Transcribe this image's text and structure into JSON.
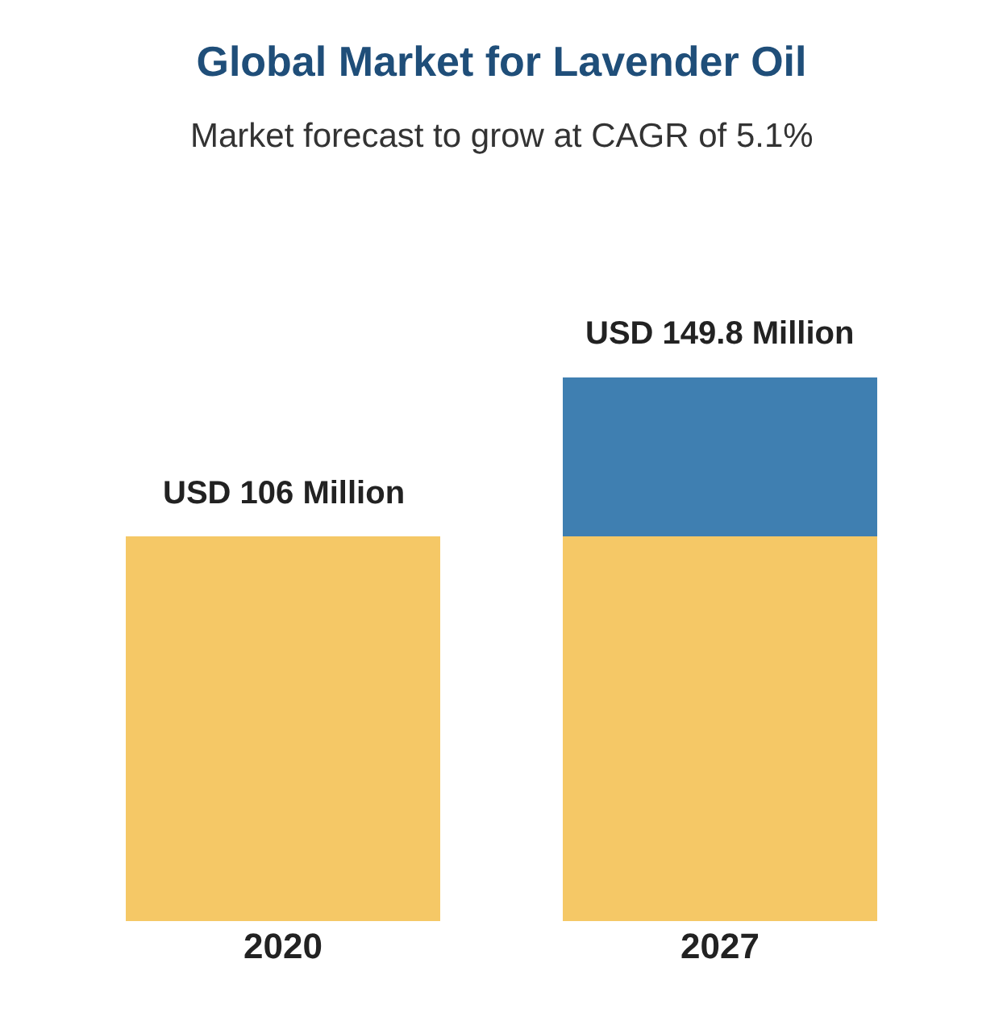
{
  "chart_data": {
    "type": "bar",
    "title": "Global Market for Lavender Oil",
    "subtitle": "Market forecast to grow at CAGR of 5.1%",
    "categories": [
      "2020",
      "2027"
    ],
    "stacked": true,
    "series": [
      {
        "color": "#f5c866",
        "values": [
          106,
          106
        ],
        "value_labels": [
          "USD 106 Million",
          null
        ]
      },
      {
        "color": "#3f7fb1",
        "values": [
          null,
          43.8
        ]
      }
    ],
    "totals": [
      null,
      "USD 149.8 Million"
    ]
  }
}
